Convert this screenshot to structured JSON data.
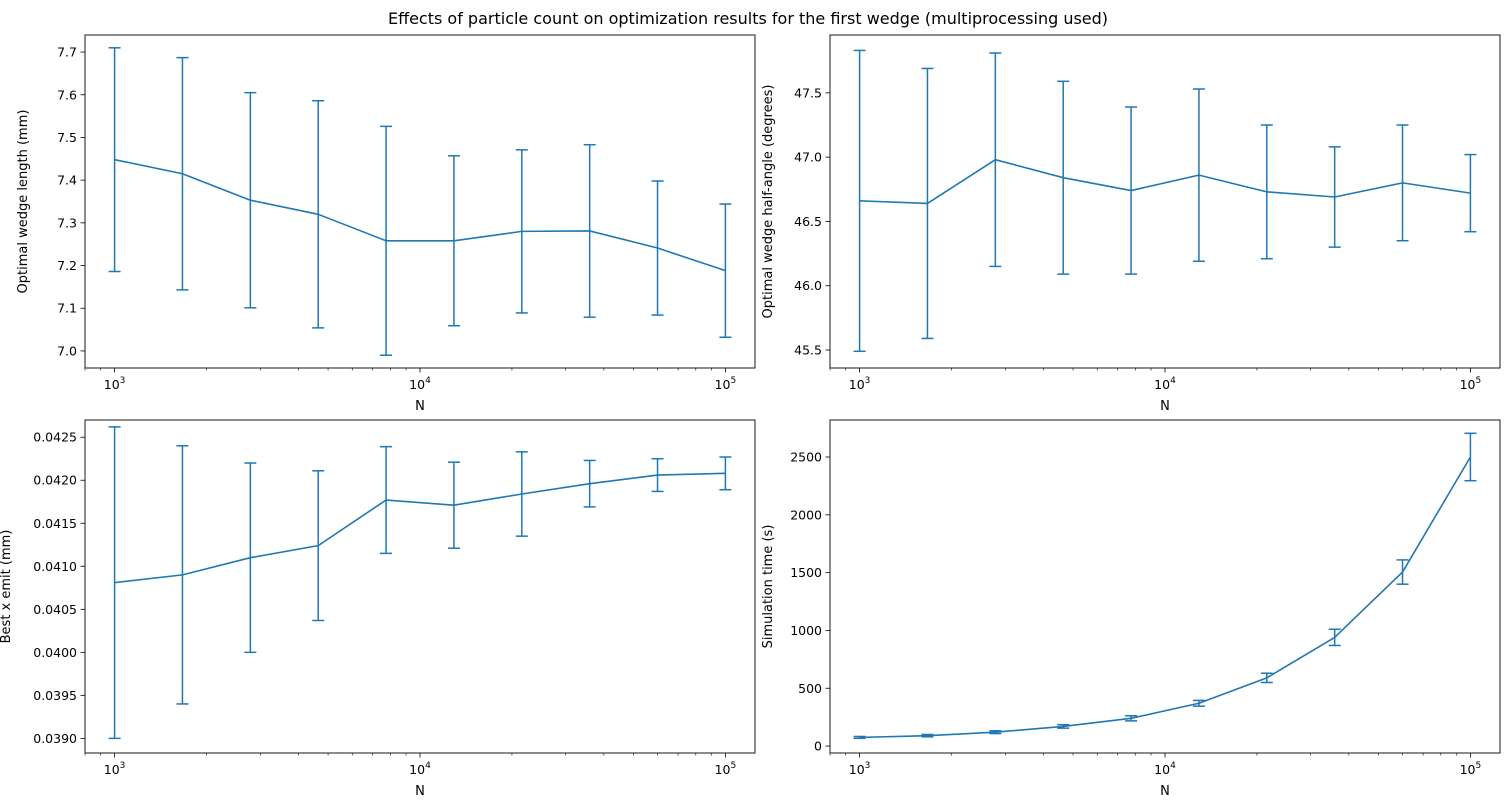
{
  "figure": {
    "title": "Effects of particle count on optimization results for the first wedge (multiprocessing used)",
    "series_color": "#1f77b4"
  },
  "chart_data": [
    {
      "type": "line",
      "error_bars": true,
      "x_scale": "log",
      "xlabel": "N",
      "ylabel": "Optimal wedge length (mm)",
      "x": [
        1000,
        1668,
        2783,
        4642,
        7743,
        12915,
        21544,
        35938,
        59948,
        100000
      ],
      "values": [
        7.448,
        7.415,
        7.353,
        7.32,
        7.258,
        7.258,
        7.28,
        7.281,
        7.241,
        7.188
      ],
      "errors": [
        0.262,
        0.272,
        0.252,
        0.266,
        0.268,
        0.199,
        0.191,
        0.202,
        0.157,
        0.156
      ],
      "xlim": [
        800,
        125000
      ],
      "ylim": [
        6.96,
        7.74
      ],
      "xticks": [
        1000,
        10000,
        100000
      ],
      "xtick_labels": [
        {
          "base": "10",
          "exp": "3"
        },
        {
          "base": "10",
          "exp": "4"
        },
        {
          "base": "10",
          "exp": "5"
        }
      ],
      "yticks": [
        7.0,
        7.1,
        7.2,
        7.3,
        7.4,
        7.5,
        7.6,
        7.7
      ],
      "ytick_labels": [
        "7.0",
        "7.1",
        "7.2",
        "7.3",
        "7.4",
        "7.5",
        "7.6",
        "7.7"
      ]
    },
    {
      "type": "line",
      "error_bars": true,
      "x_scale": "log",
      "xlabel": "N",
      "ylabel": "Optimal wedge half-angle (degrees)",
      "x": [
        1000,
        1668,
        2783,
        4642,
        7743,
        12915,
        21544,
        35938,
        59948,
        100000
      ],
      "values": [
        46.66,
        46.64,
        46.98,
        46.84,
        46.74,
        46.86,
        46.73,
        46.69,
        46.8,
        46.72
      ],
      "errors": [
        1.17,
        1.05,
        0.83,
        0.75,
        0.65,
        0.67,
        0.52,
        0.39,
        0.45,
        0.3
      ],
      "xlim": [
        800,
        125000
      ],
      "ylim": [
        45.36,
        47.95
      ],
      "xticks": [
        1000,
        10000,
        100000
      ],
      "xtick_labels": [
        {
          "base": "10",
          "exp": "3"
        },
        {
          "base": "10",
          "exp": "4"
        },
        {
          "base": "10",
          "exp": "5"
        }
      ],
      "yticks": [
        45.5,
        46.0,
        46.5,
        47.0,
        47.5
      ],
      "ytick_labels": [
        "45.5",
        "46.0",
        "46.5",
        "47.0",
        "47.5"
      ]
    },
    {
      "type": "line",
      "error_bars": true,
      "x_scale": "log",
      "xlabel": "N",
      "ylabel": "Best x emit (mm)",
      "x": [
        1000,
        1668,
        2783,
        4642,
        7743,
        12915,
        21544,
        35938,
        59948,
        100000
      ],
      "values": [
        0.04081,
        0.0409,
        0.0411,
        0.04124,
        0.04177,
        0.04171,
        0.04184,
        0.04196,
        0.04206,
        0.04208
      ],
      "errors": [
        0.00181,
        0.0015,
        0.0011,
        0.00087,
        0.00062,
        0.0005,
        0.00049,
        0.00027,
        0.00019,
        0.00019
      ],
      "xlim": [
        800,
        125000
      ],
      "ylim": [
        0.03883,
        0.0427
      ],
      "xticks": [
        1000,
        10000,
        100000
      ],
      "xtick_labels": [
        {
          "base": "10",
          "exp": "3"
        },
        {
          "base": "10",
          "exp": "4"
        },
        {
          "base": "10",
          "exp": "5"
        }
      ],
      "yticks": [
        0.039,
        0.0395,
        0.04,
        0.0405,
        0.041,
        0.0415,
        0.042,
        0.0425
      ],
      "ytick_labels": [
        "0.0390",
        "0.0395",
        "0.0400",
        "0.0405",
        "0.0410",
        "0.0415",
        "0.0420",
        "0.0425"
      ]
    },
    {
      "type": "line",
      "error_bars": true,
      "x_scale": "log",
      "xlabel": "N",
      "ylabel": "Simulation time (s)",
      "x": [
        1000,
        1668,
        2783,
        4642,
        7743,
        12915,
        21544,
        35938,
        59948,
        100000
      ],
      "values": [
        75,
        90,
        120,
        170,
        240,
        370,
        590,
        940,
        1505,
        2500
      ],
      "errors": [
        8,
        10,
        12,
        15,
        22,
        25,
        40,
        70,
        105,
        205
      ],
      "xlim": [
        800,
        125000
      ],
      "ylim": [
        -60,
        2820
      ],
      "xticks": [
        1000,
        10000,
        100000
      ],
      "xtick_labels": [
        {
          "base": "10",
          "exp": "3"
        },
        {
          "base": "10",
          "exp": "4"
        },
        {
          "base": "10",
          "exp": "5"
        }
      ],
      "yticks": [
        0,
        500,
        1000,
        1500,
        2000,
        2500
      ],
      "ytick_labels": [
        "0",
        "500",
        "1000",
        "1500",
        "2000",
        "2500"
      ]
    }
  ]
}
